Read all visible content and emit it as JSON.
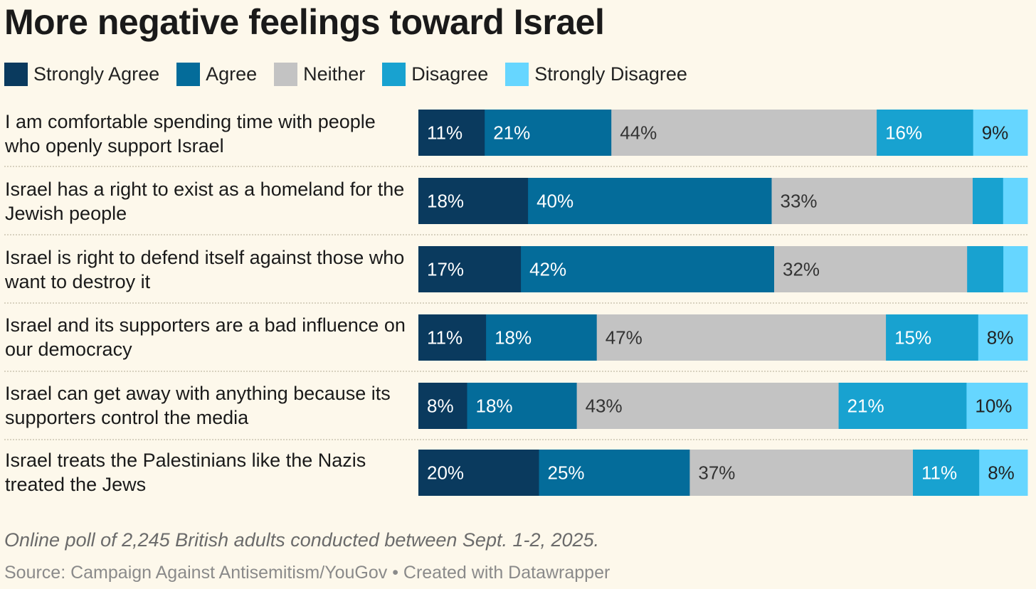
{
  "chart_data": {
    "type": "bar",
    "stacked": true,
    "orientation": "horizontal",
    "title": "More negative feelings toward Israel",
    "legend_position": "top",
    "categories": [
      "I am comfortable spending time with people who openly support Israel",
      "Israel has a right to exist as a homeland for the Jewish people",
      "Israel is right to defend itself against those who want to destroy it",
      "Israel and its supporters are a bad influence on our democracy",
      "Israel can get away with anything because its supporters control the media",
      "Israel treats the Palestinians like the Nazis treated the Jews"
    ],
    "series": [
      {
        "name": "Strongly Agree",
        "color": "#0a3a5e",
        "label_color": "#ffffff",
        "values": [
          11,
          18,
          17,
          11,
          8,
          20
        ],
        "labels": [
          "11%",
          "18%",
          "17%",
          "11%",
          "8%",
          "20%"
        ]
      },
      {
        "name": "Agree",
        "color": "#046c9a",
        "label_color": "#ffffff",
        "values": [
          21,
          40,
          42,
          18,
          18,
          25
        ],
        "labels": [
          "21%",
          "40%",
          "42%",
          "18%",
          "18%",
          "25%"
        ]
      },
      {
        "name": "Neither",
        "color": "#c3c3c3",
        "label_color": "#333333",
        "values": [
          44,
          33,
          32,
          47,
          43,
          37
        ],
        "labels": [
          "44%",
          "33%",
          "32%",
          "47%",
          "43%",
          "37%"
        ]
      },
      {
        "name": "Disagree",
        "color": "#18a2d0",
        "label_color": "#ffffff",
        "values": [
          16,
          5,
          6,
          15,
          21,
          11
        ],
        "labels": [
          "16%",
          "",
          "",
          "15%",
          "21%",
          "11%"
        ]
      },
      {
        "name": "Strongly Disagree",
        "color": "#66d6ff",
        "label_color": "#222222",
        "values": [
          9,
          4,
          4,
          8,
          10,
          8
        ],
        "labels": [
          "9%",
          "",
          "",
          "8%",
          "10%",
          "8%"
        ]
      }
    ],
    "xlim": [
      0,
      100
    ],
    "grid": false
  },
  "note": "Online poll of 2,245 British adults conducted between Sept. 1-2, 2025.",
  "source": "Source: Campaign Against Antisemitism/YouGov • Created with Datawrapper"
}
